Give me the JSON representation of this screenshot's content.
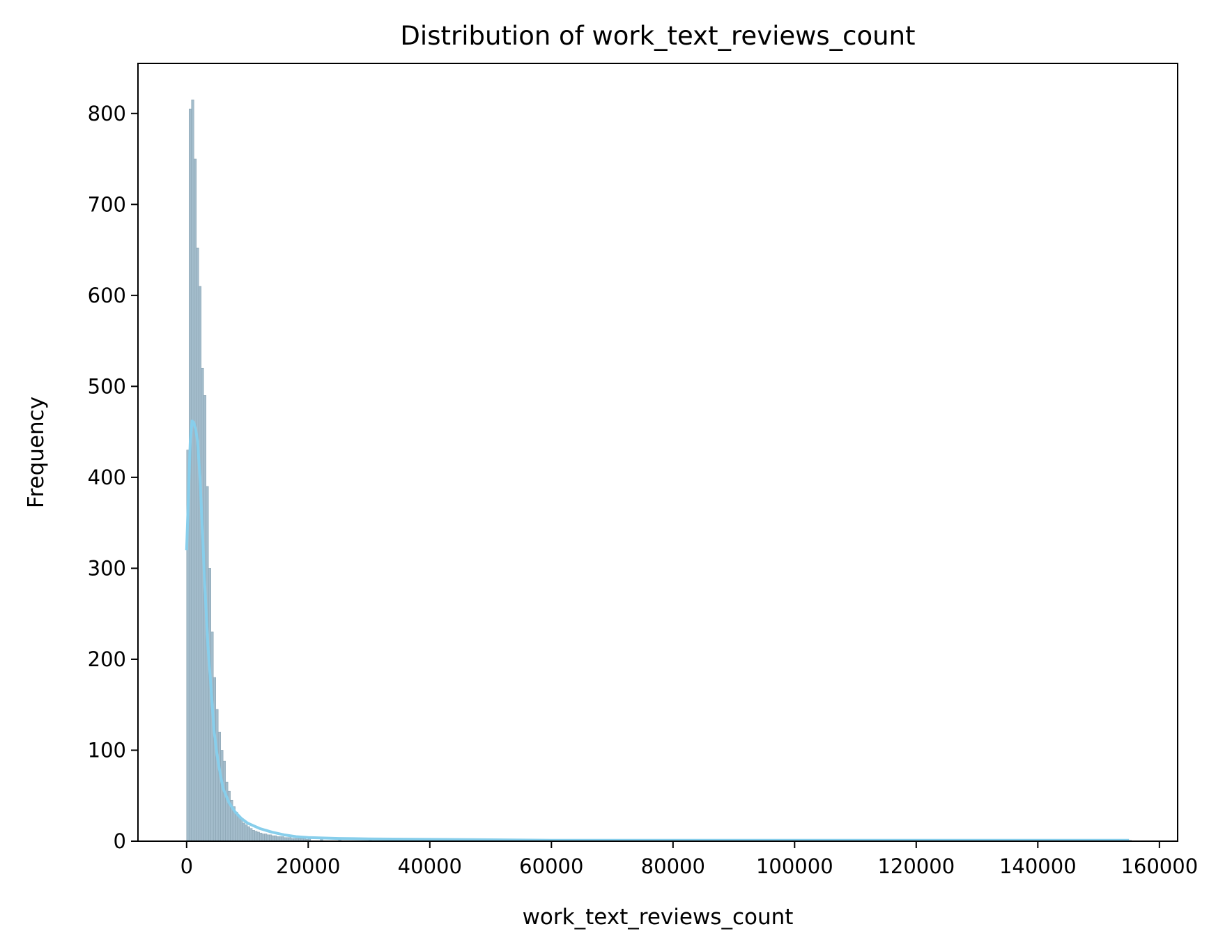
{
  "chart_data": {
    "type": "bar",
    "subtype": "histogram_with_kde",
    "title": "Distribution of work_text_reviews_count",
    "xlabel": "work_text_reviews_count",
    "ylabel": "Frequency",
    "xlim": [
      -8000,
      163000
    ],
    "ylim": [
      0,
      855
    ],
    "xticks": [
      0,
      20000,
      40000,
      60000,
      80000,
      100000,
      120000,
      140000,
      160000
    ],
    "yticks": [
      0,
      100,
      200,
      300,
      400,
      500,
      600,
      700,
      800
    ],
    "grid": false,
    "legend": "none",
    "colors": {
      "bar_fill": "#a3bccb",
      "bar_edge": "#8aa3b2",
      "kde_line": "#87ceeb",
      "axes": "#000000"
    },
    "bin_width": 400,
    "series": [
      {
        "kind": "histogram",
        "x": [
          0,
          400,
          800,
          1200,
          1600,
          2000,
          2400,
          2800,
          3200,
          3600,
          4000,
          4400,
          4800,
          5200,
          5600,
          6000,
          6400,
          6800,
          7200,
          7600,
          8000,
          8400,
          8800,
          9200,
          9600,
          10000,
          10400,
          10800,
          11200,
          11600,
          12000,
          12400,
          12800,
          13200,
          13600,
          14000,
          14400,
          14800,
          15200,
          15600,
          16000,
          16400,
          16800,
          17200,
          17600,
          18000,
          18400,
          18800,
          19200,
          19600,
          20000,
          22000,
          25000,
          30000,
          35000,
          40000,
          45000,
          50000,
          60000,
          70000,
          80000,
          100000,
          120000,
          155000
        ],
        "values": [
          430,
          805,
          815,
          750,
          652,
          610,
          520,
          490,
          390,
          300,
          230,
          180,
          145,
          120,
          100,
          88,
          65,
          55,
          45,
          38,
          32,
          28,
          24,
          20,
          18,
          16,
          14,
          12,
          11,
          10,
          9,
          8,
          8,
          7,
          7,
          6,
          6,
          5,
          5,
          5,
          4,
          4,
          4,
          3,
          3,
          3,
          3,
          3,
          3,
          2,
          3,
          3,
          2,
          2,
          2,
          2,
          1,
          1,
          1,
          1,
          1,
          1,
          1,
          1
        ]
      },
      {
        "kind": "kde",
        "x": [
          0,
          300,
          600,
          900,
          1200,
          1500,
          1800,
          2200,
          2600,
          3000,
          3500,
          4000,
          4500,
          5000,
          5500,
          6000,
          7000,
          8000,
          9000,
          10000,
          12000,
          14000,
          16000,
          18000,
          20000,
          25000,
          30000,
          40000,
          50000,
          60000,
          80000,
          100000,
          120000,
          140000,
          155000
        ],
        "values": [
          320,
          380,
          440,
          462,
          460,
          452,
          440,
          400,
          340,
          280,
          215,
          170,
          122,
          95,
          75,
          58,
          42,
          32,
          25,
          20,
          14,
          10,
          7,
          5,
          4,
          3,
          2.5,
          2,
          1.5,
          1,
          1,
          1,
          1,
          1,
          1
        ]
      }
    ]
  }
}
